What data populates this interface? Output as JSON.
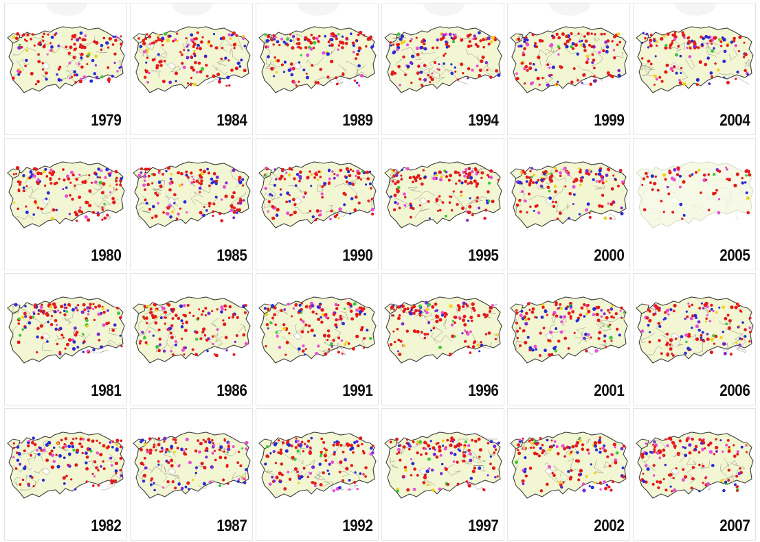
{
  "colors": {
    "country_fill": "#f2f6d2",
    "country_fill_faded": "#f6f9e6",
    "border": "#3a3a3a",
    "province_lines": "#8c8c7a",
    "dots": [
      "#e41a1c",
      "#2a2ad6",
      "#e84fd6",
      "#f2d21b",
      "#3cc83c",
      "#7a2ad6"
    ]
  },
  "icons": [
    "turkey-map-icon"
  ],
  "columns": [
    [
      "1979",
      "1980",
      "1981",
      "1982"
    ],
    [
      "1984",
      "1985",
      "1986",
      "1987"
    ],
    [
      "1989",
      "1990",
      "1991",
      "1992"
    ],
    [
      "1994",
      "1995",
      "1996",
      "1997"
    ],
    [
      "1999",
      "2000",
      "2001",
      "2002"
    ],
    [
      "2004",
      "2005",
      "2006",
      "2007"
    ]
  ],
  "faded_panels": [
    "2005"
  ]
}
